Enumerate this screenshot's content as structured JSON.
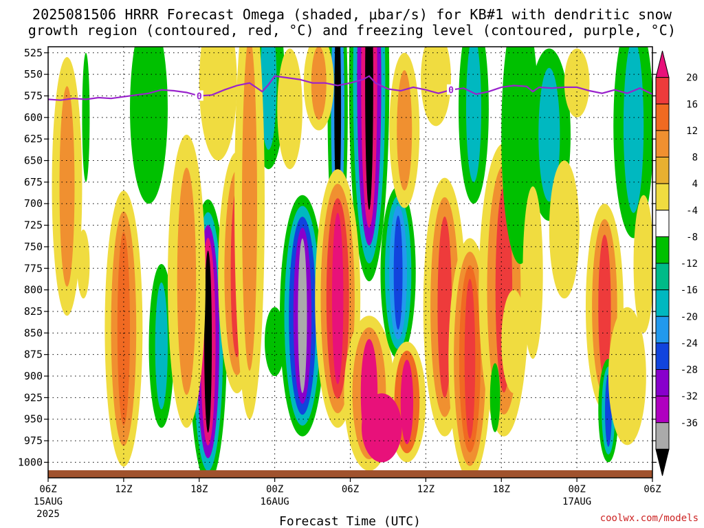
{
  "title": {
    "line1": "2025081506 HRRR Forecast Omega (shaded, μbar/s) for KB#1 with dendritic snow",
    "line2": "growth region (contoured, red, °C) and freezing level (contoured, purple, °C)"
  },
  "credit": "coolwx.com/models",
  "chart_data": {
    "type": "heatmap",
    "xlabel": "Forecast Time (UTC)",
    "x_ticks": [
      {
        "hour": 0,
        "label": "06Z",
        "date": "15AUG",
        "year": "2025"
      },
      {
        "hour": 6,
        "label": "12Z"
      },
      {
        "hour": 12,
        "label": "18Z"
      },
      {
        "hour": 18,
        "label": "00Z",
        "date": "16AUG"
      },
      {
        "hour": 24,
        "label": "06Z"
      },
      {
        "hour": 30,
        "label": "12Z"
      },
      {
        "hour": 36,
        "label": "18Z"
      },
      {
        "hour": 42,
        "label": "00Z",
        "date": "17AUG"
      },
      {
        "hour": 48,
        "label": "06Z"
      }
    ],
    "x_range": [
      0,
      48
    ],
    "y_levels": [
      525,
      550,
      575,
      600,
      625,
      650,
      675,
      700,
      725,
      750,
      775,
      800,
      825,
      850,
      875,
      900,
      925,
      950,
      975,
      1000
    ],
    "y_range": [
      1018,
      518
    ],
    "colorbar": {
      "labels": [
        "20",
        "16",
        "12",
        "8",
        "4",
        "-4",
        "-8",
        "-12",
        "-16",
        "-20",
        "-24",
        "-28",
        "-32",
        "-36"
      ],
      "colors": [
        "#e8117a",
        "#ee3b3b",
        "#f06a22",
        "#f09030",
        "#e8b030",
        "#f0dc40",
        "#ffffff",
        "#00c000",
        "#00bb88",
        "#00b8c0",
        "#2299ee",
        "#1144dd",
        "#8800cc",
        "#b000c0",
        "#aaaaaa",
        "#000000"
      ]
    },
    "freezing_level": {
      "label": "0",
      "points": [
        [
          0,
          579
        ],
        [
          1,
          580
        ],
        [
          2,
          578
        ],
        [
          3,
          579
        ],
        [
          4,
          577
        ],
        [
          5,
          578
        ],
        [
          6,
          576
        ],
        [
          7,
          574
        ],
        [
          8,
          572
        ],
        [
          9,
          568
        ],
        [
          10,
          569
        ],
        [
          11,
          571
        ],
        [
          12,
          575
        ],
        [
          13,
          574
        ],
        [
          14,
          568
        ],
        [
          15,
          563
        ],
        [
          16,
          560
        ],
        [
          16.5,
          565
        ],
        [
          17,
          570
        ],
        [
          17.5,
          562
        ],
        [
          18,
          552
        ],
        [
          19,
          554
        ],
        [
          20,
          556
        ],
        [
          21,
          560
        ],
        [
          22,
          560
        ],
        [
          23,
          563
        ],
        [
          24,
          560
        ],
        [
          25,
          556
        ],
        [
          25.5,
          552
        ],
        [
          26,
          560
        ],
        [
          27,
          567
        ],
        [
          28,
          569
        ],
        [
          29,
          565
        ],
        [
          30,
          568
        ],
        [
          31,
          572
        ],
        [
          32,
          568
        ],
        [
          33,
          566
        ],
        [
          34,
          573
        ],
        [
          35,
          570
        ],
        [
          36,
          565
        ],
        [
          37,
          563
        ],
        [
          38,
          564
        ],
        [
          38.5,
          570
        ],
        [
          39,
          565
        ],
        [
          40,
          566
        ],
        [
          41,
          565
        ],
        [
          42,
          565
        ],
        [
          43,
          569
        ],
        [
          44,
          572
        ],
        [
          45,
          568
        ],
        [
          46,
          572
        ],
        [
          47,
          566
        ],
        [
          48,
          573
        ]
      ]
    },
    "blobs": [
      {
        "cx": 12.7,
        "cy": 860,
        "rx": 1.5,
        "ry": 165,
        "colors": [
          "#00c000",
          "#00b8c0",
          "#8800cc",
          "#e8117a",
          "#000000"
        ]
      },
      {
        "cx": 25.5,
        "cy": 560,
        "rx": 1.6,
        "ry": 230,
        "colors": [
          "#00c000",
          "#00b8c0",
          "#8800cc",
          "#e8117a",
          "#000000"
        ]
      },
      {
        "cx": 23.0,
        "cy": 590,
        "rx": 0.8,
        "ry": 170,
        "colors": [
          "#00c000",
          "#2299ee",
          "#000000"
        ]
      },
      {
        "cx": 20.2,
        "cy": 830,
        "rx": 1.8,
        "ry": 140,
        "colors": [
          "#00c000",
          "#00b8c0",
          "#1144dd",
          "#8800cc",
          "#aaaaaa"
        ]
      },
      {
        "cx": 23.0,
        "cy": 810,
        "rx": 1.8,
        "ry": 150,
        "colors": [
          "#f0dc40",
          "#f09030",
          "#ee3b3b",
          "#e8117a"
        ]
      },
      {
        "cx": 25.5,
        "cy": 920,
        "rx": 2.0,
        "ry": 90,
        "colors": [
          "#f0dc40",
          "#f09030",
          "#e8117a"
        ]
      },
      {
        "cx": 27.8,
        "cy": 780,
        "rx": 1.4,
        "ry": 100,
        "colors": [
          "#00c000",
          "#00b8c0",
          "#2299ee",
          "#1144dd"
        ]
      },
      {
        "cx": 28.5,
        "cy": 930,
        "rx": 1.5,
        "ry": 70,
        "colors": [
          "#f0dc40",
          "#f06a22",
          "#e8117a"
        ]
      },
      {
        "cx": 6.0,
        "cy": 845,
        "rx": 1.5,
        "ry": 160,
        "colors": [
          "#f0dc40",
          "#f09030",
          "#f06a22"
        ]
      },
      {
        "cx": 9.0,
        "cy": 865,
        "rx": 1.0,
        "ry": 95,
        "colors": [
          "#00c000",
          "#00b8c0"
        ]
      },
      {
        "cx": 11.0,
        "cy": 790,
        "rx": 1.5,
        "ry": 170,
        "colors": [
          "#f0dc40",
          "#f09030"
        ]
      },
      {
        "cx": 15.0,
        "cy": 780,
        "rx": 1.5,
        "ry": 140,
        "colors": [
          "#f0dc40",
          "#f09030",
          "#ee3b3b"
        ]
      },
      {
        "cx": 1.5,
        "cy": 680,
        "rx": 1.2,
        "ry": 150,
        "colors": [
          "#f0dc40",
          "#f09030"
        ]
      },
      {
        "cx": 2.8,
        "cy": 770,
        "rx": 0.5,
        "ry": 40,
        "colors": [
          "#f0dc40"
        ]
      },
      {
        "cx": 8.0,
        "cy": 590,
        "rx": 1.5,
        "ry": 110,
        "colors": [
          "#00c000"
        ]
      },
      {
        "cx": 3.0,
        "cy": 600,
        "rx": 0.3,
        "ry": 75,
        "colors": [
          "#00c000"
        ]
      },
      {
        "cx": 17.5,
        "cy": 560,
        "rx": 1.3,
        "ry": 100,
        "colors": [
          "#00c000",
          "#00b8c0"
        ]
      },
      {
        "cx": 16.0,
        "cy": 700,
        "rx": 1.2,
        "ry": 250,
        "colors": [
          "#f0dc40",
          "#f09030"
        ]
      },
      {
        "cx": 13.5,
        "cy": 560,
        "rx": 1.5,
        "ry": 90,
        "colors": [
          "#f0dc40"
        ]
      },
      {
        "cx": 18.0,
        "cy": 860,
        "rx": 0.8,
        "ry": 40,
        "colors": [
          "#00c000"
        ]
      },
      {
        "cx": 31.5,
        "cy": 820,
        "rx": 1.7,
        "ry": 150,
        "colors": [
          "#f0dc40",
          "#f09030",
          "#ee3b3b"
        ]
      },
      {
        "cx": 33.5,
        "cy": 880,
        "rx": 1.7,
        "ry": 140,
        "colors": [
          "#f0dc40",
          "#f09030",
          "#f06a22",
          "#ee3b3b"
        ]
      },
      {
        "cx": 36.2,
        "cy": 800,
        "rx": 2.0,
        "ry": 170,
        "colors": [
          "#f0dc40",
          "#f09030",
          "#ee3b3b"
        ]
      },
      {
        "cx": 35.5,
        "cy": 925,
        "rx": 0.4,
        "ry": 40,
        "colors": [
          "#00c000"
        ]
      },
      {
        "cx": 33.8,
        "cy": 590,
        "rx": 1.2,
        "ry": 110,
        "colors": [
          "#00c000",
          "#00b8c0"
        ]
      },
      {
        "cx": 37.5,
        "cy": 620,
        "rx": 1.5,
        "ry": 150,
        "colors": [
          "#00c000"
        ]
      },
      {
        "cx": 39.8,
        "cy": 620,
        "rx": 1.7,
        "ry": 100,
        "colors": [
          "#00c000",
          "#00b8c0"
        ]
      },
      {
        "cx": 37.0,
        "cy": 860,
        "rx": 1.0,
        "ry": 60,
        "colors": [
          "#f0dc40"
        ]
      },
      {
        "cx": 38.5,
        "cy": 780,
        "rx": 0.8,
        "ry": 100,
        "colors": [
          "#f0dc40"
        ]
      },
      {
        "cx": 41.0,
        "cy": 730,
        "rx": 1.2,
        "ry": 80,
        "colors": [
          "#f0dc40"
        ]
      },
      {
        "cx": 44.2,
        "cy": 820,
        "rx": 1.5,
        "ry": 120,
        "colors": [
          "#f0dc40",
          "#f09030",
          "#ee3b3b"
        ]
      },
      {
        "cx": 44.5,
        "cy": 940,
        "rx": 0.8,
        "ry": 60,
        "colors": [
          "#00c000",
          "#00b8c0",
          "#1144dd"
        ]
      },
      {
        "cx": 46.5,
        "cy": 610,
        "rx": 1.6,
        "ry": 130,
        "colors": [
          "#00c000",
          "#00b8c0"
        ]
      },
      {
        "cx": 47.3,
        "cy": 770,
        "rx": 0.8,
        "ry": 80,
        "colors": [
          "#f0dc40"
        ]
      },
      {
        "cx": 46.0,
        "cy": 900,
        "rx": 1.5,
        "ry": 80,
        "colors": [
          "#f0dc40"
        ]
      },
      {
        "cx": 28.3,
        "cy": 615,
        "rx": 1.2,
        "ry": 90,
        "colors": [
          "#f0dc40",
          "#f09030"
        ]
      },
      {
        "cx": 30.8,
        "cy": 555,
        "rx": 1.2,
        "ry": 55,
        "colors": [
          "#f0dc40"
        ]
      },
      {
        "cx": 19.2,
        "cy": 590,
        "rx": 1.0,
        "ry": 70,
        "colors": [
          "#f0dc40"
        ]
      },
      {
        "cx": 21.5,
        "cy": 560,
        "rx": 1.2,
        "ry": 55,
        "colors": [
          "#f0dc40",
          "#f09030"
        ]
      },
      {
        "cx": 42.0,
        "cy": 560,
        "rx": 1.0,
        "ry": 40,
        "colors": [
          "#f0dc40"
        ]
      },
      {
        "cx": 26.5,
        "cy": 960,
        "rx": 1.6,
        "ry": 40,
        "colors": [
          "#e8117a"
        ]
      }
    ]
  }
}
